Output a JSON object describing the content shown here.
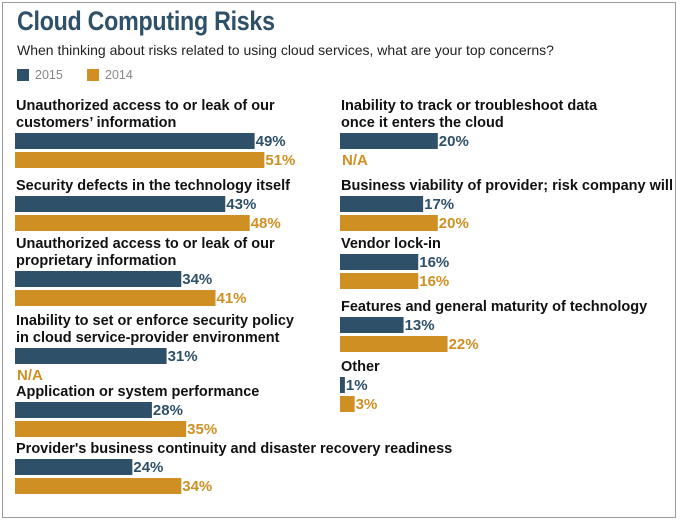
{
  "chart_data": {
    "type": "bar",
    "orientation": "horizontal",
    "title": "Cloud Computing Risks",
    "subtitle": "When thinking about risks related to using cloud services, what are your top concerns?",
    "series": [
      {
        "name": "2015",
        "color": "#2e5069"
      },
      {
        "name": "2014",
        "color": "#d08f22"
      }
    ],
    "value_suffix": "%",
    "missing_label": "N/A",
    "categories": [
      {
        "label": [
          "Unauthorized access to or leak of our",
          "customers’ information"
        ],
        "values": [
          49,
          51
        ]
      },
      {
        "label": [
          "Security defects in the technology itself"
        ],
        "values": [
          43,
          48
        ]
      },
      {
        "label": [
          "Unauthorized access to or leak of our",
          "proprietary information"
        ],
        "values": [
          34,
          41
        ]
      },
      {
        "label": [
          "Inability to set or enforce security policy",
          "in cloud service-provider environment"
        ],
        "values": [
          31,
          null
        ]
      },
      {
        "label": [
          "Application or system performance"
        ],
        "values": [
          28,
          35
        ]
      },
      {
        "label": [
          "Provider's business continuity and disaster recovery readiness"
        ],
        "values": [
          24,
          34
        ]
      },
      {
        "label": [
          "Inability to track or troubleshoot data",
          "once it enters the cloud"
        ],
        "values": [
          20,
          null
        ]
      },
      {
        "label": [
          "Business viability of provider; risk company will fail"
        ],
        "values": [
          17,
          20
        ]
      },
      {
        "label": [
          "Vendor lock-in"
        ],
        "values": [
          16,
          16
        ]
      },
      {
        "label": [
          "Features and general maturity of technology"
        ],
        "values": [
          13,
          22
        ]
      },
      {
        "label": [
          "Other"
        ],
        "values": [
          1,
          3
        ]
      }
    ]
  }
}
